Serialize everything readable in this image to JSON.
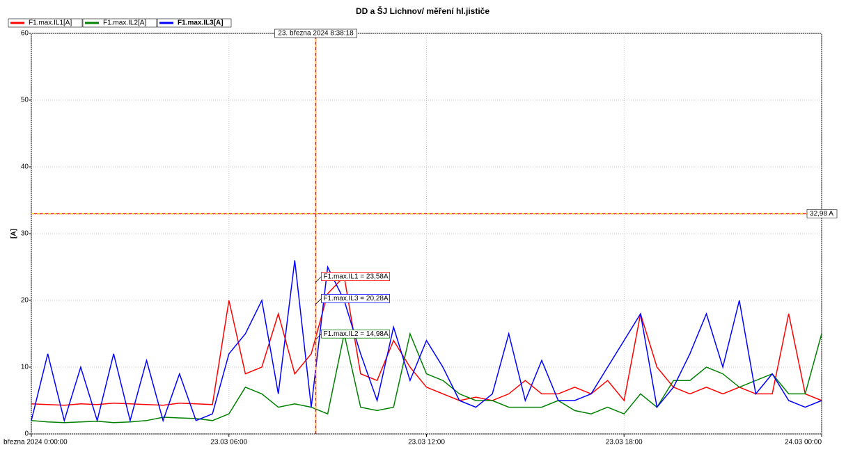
{
  "chart_data": {
    "type": "line",
    "title": "DD a ŠJ Lichnov/ měření hl.jističe",
    "y_label": "[A]",
    "x": [
      0,
      0.5,
      1,
      1.5,
      2,
      2.5,
      3,
      3.5,
      4,
      4.5,
      5,
      5.5,
      6,
      6.5,
      7,
      7.5,
      8,
      8.5,
      9,
      9.5,
      10,
      10.5,
      11,
      11.5,
      12,
      12.5,
      13,
      13.5,
      14,
      14.5,
      15,
      15.5,
      16,
      16.5,
      17,
      17.5,
      18,
      18.5,
      19,
      19.5,
      20,
      20.5,
      21,
      21.5,
      22,
      22.5,
      23,
      23.5,
      24
    ],
    "series": [
      {
        "name": "F1.max.IL1[A]",
        "color": "#ff0000",
        "bold": false,
        "values": [
          4.5,
          4.4,
          4.3,
          4.5,
          4.4,
          4.6,
          4.5,
          4.4,
          4.3,
          4.6,
          4.5,
          4.4,
          20,
          9,
          10,
          18,
          9,
          12,
          21,
          23.6,
          9,
          8,
          14,
          10,
          7,
          6,
          5,
          5.5,
          5,
          6,
          8,
          6,
          6,
          7,
          6,
          8,
          5,
          18,
          10,
          7,
          6,
          7,
          6,
          7,
          6,
          6,
          18,
          6,
          5
        ]
      },
      {
        "name": "F1.max.IL2[A]",
        "color": "#008000",
        "bold": false,
        "values": [
          2,
          1.8,
          1.7,
          1.8,
          1.9,
          1.7,
          1.8,
          2,
          2.5,
          2.4,
          2.3,
          2,
          3,
          7,
          6,
          4,
          4.5,
          4,
          3,
          15,
          4,
          3.5,
          4,
          15,
          9,
          8,
          6,
          5,
          5,
          4,
          4,
          4,
          5,
          3.5,
          3,
          4,
          3,
          6,
          4,
          8,
          8,
          10,
          9,
          7,
          8,
          9,
          6,
          6,
          15
        ]
      },
      {
        "name": "F1.max.IL3[A]",
        "color": "#0000ff",
        "bold": true,
        "values": [
          2,
          12,
          2,
          10,
          2,
          12,
          2,
          11,
          2,
          9,
          2,
          3,
          12,
          15,
          20,
          6,
          26,
          4,
          25,
          20,
          12,
          5,
          16,
          8,
          14,
          10,
          5,
          4,
          6,
          15,
          5,
          11,
          5,
          5,
          6,
          10,
          14,
          18,
          4,
          7,
          12,
          18,
          10,
          20,
          6,
          9,
          5,
          4,
          5
        ]
      }
    ],
    "xlim": [
      0,
      24
    ],
    "xticks": [
      {
        "value": 0,
        "label": "března 2024 0:00:00"
      },
      {
        "value": 6,
        "label": "23.03 06:00"
      },
      {
        "value": 12,
        "label": "23.03 12:00"
      },
      {
        "value": 18,
        "label": "23.03 18:00"
      },
      {
        "value": 24,
        "label": "24.03 00:00"
      }
    ],
    "ylim": [
      0,
      60
    ],
    "yticks": [
      0,
      10,
      20,
      30,
      40,
      50,
      60
    ],
    "grid": true,
    "cursor_x": {
      "value": 8.638,
      "label": "23. března 2024 8:38:18"
    },
    "cursor_y": {
      "value": 32.98,
      "label": "32,98 A"
    },
    "readouts": [
      {
        "label": "F1.max.IL1 = 23,58A",
        "value": 23.58,
        "color": "#ff0000"
      },
      {
        "label": "F1.max.IL3 = 20,28A",
        "value": 20.28,
        "color": "#0000ff"
      },
      {
        "label": "F1.max.IL2 = 14,98A",
        "value": 14.98,
        "color": "#008000"
      }
    ]
  }
}
